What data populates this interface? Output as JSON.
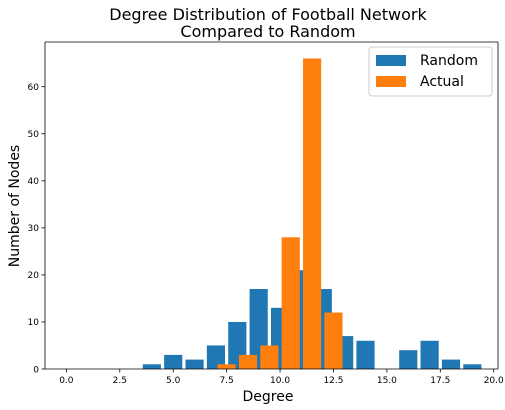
{
  "chart_data": {
    "type": "bar",
    "title": [
      "Degree Distribution of Football Network",
      "Compared to Random"
    ],
    "xlabel": "Degree",
    "ylabel": "Number of Nodes",
    "xlim": [
      -1.0,
      20.2
    ],
    "ylim": [
      0,
      69.5
    ],
    "xticks": [
      "0.0",
      "2.5",
      "5.0",
      "7.5",
      "10.0",
      "12.5",
      "15.0",
      "17.5",
      "20.0"
    ],
    "yticks": [
      "0",
      "10",
      "20",
      "30",
      "40",
      "50",
      "60"
    ],
    "grid": false,
    "legend_position": "top-right",
    "series": [
      {
        "name": "Random",
        "color": "#1f77b4",
        "points": [
          {
            "x": 4,
            "y": 1
          },
          {
            "x": 5,
            "y": 3
          },
          {
            "x": 6,
            "y": 2
          },
          {
            "x": 7,
            "y": 5
          },
          {
            "x": 8,
            "y": 10
          },
          {
            "x": 9,
            "y": 17
          },
          {
            "x": 10,
            "y": 13
          },
          {
            "x": 11,
            "y": 21
          },
          {
            "x": 12,
            "y": 17
          },
          {
            "x": 13,
            "y": 7
          },
          {
            "x": 14,
            "y": 6
          },
          {
            "x": 16,
            "y": 4
          },
          {
            "x": 17,
            "y": 6
          },
          {
            "x": 18,
            "y": 2
          },
          {
            "x": 19,
            "y": 1
          }
        ]
      },
      {
        "name": "Actual",
        "color": "#ff7f0e",
        "points": [
          {
            "x": 7.5,
            "y": 1
          },
          {
            "x": 8.5,
            "y": 3
          },
          {
            "x": 9.5,
            "y": 5
          },
          {
            "x": 10.5,
            "y": 28
          },
          {
            "x": 11.5,
            "y": 66
          },
          {
            "x": 12.5,
            "y": 12
          }
        ]
      }
    ]
  }
}
